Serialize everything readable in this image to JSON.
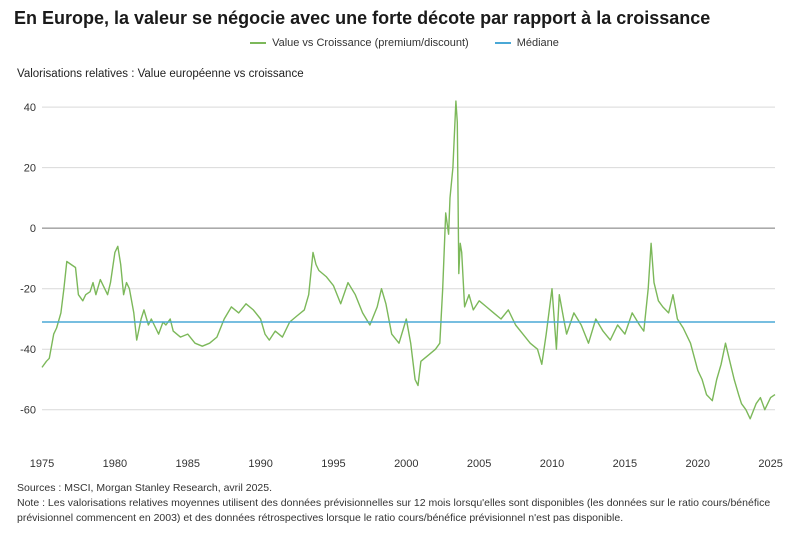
{
  "title": "En Europe, la valeur se négocie avec une forte décote par rapport à la croissance",
  "subtitle": "Valorisations relatives : Value européenne vs croissance",
  "legend": [
    {
      "label": "Value vs Croissance (premium/discount)",
      "color": "#7cb85a"
    },
    {
      "label": "Médiane",
      "color": "#4aa8d6"
    }
  ],
  "notes": {
    "source": "Sources : MSCI, Morgan Stanley Research, avril 2025.",
    "note": "Note : Les valorisations relatives moyennes utilisent des données prévisionnelles sur 12 mois lorsqu'elles sont disponibles (les données sur le ratio cours/bénéfice prévisionnel commencent en 2003) et des données rétrospectives lorsque le ratio cours/bénéfice prévisionnel n'est pas disponible."
  },
  "chart_data": {
    "type": "line",
    "xlim": [
      1975,
      2025.3
    ],
    "ylim": [
      -70,
      45
    ],
    "yticks": [
      40,
      20,
      0,
      -20,
      -40,
      -60
    ],
    "xticks": [
      1975,
      1980,
      1985,
      1990,
      1995,
      2000,
      2005,
      2010,
      2015,
      2020,
      2025
    ],
    "grid": true,
    "legend_position": "top-center",
    "series": [
      {
        "name": "Value vs Croissance (premium/discount)",
        "color": "#7cb85a",
        "points": [
          [
            1975.0,
            -46
          ],
          [
            1975.3,
            -44
          ],
          [
            1975.5,
            -43
          ],
          [
            1975.8,
            -35
          ],
          [
            1976.0,
            -33
          ],
          [
            1976.3,
            -28
          ],
          [
            1976.5,
            -20
          ],
          [
            1976.7,
            -11
          ],
          [
            1977.0,
            -12
          ],
          [
            1977.3,
            -13
          ],
          [
            1977.5,
            -22
          ],
          [
            1977.8,
            -24
          ],
          [
            1978.0,
            -22
          ],
          [
            1978.3,
            -21
          ],
          [
            1978.5,
            -18
          ],
          [
            1978.7,
            -22
          ],
          [
            1979.0,
            -17
          ],
          [
            1979.3,
            -20
          ],
          [
            1979.5,
            -22
          ],
          [
            1979.7,
            -18
          ],
          [
            1980.0,
            -8
          ],
          [
            1980.2,
            -6
          ],
          [
            1980.4,
            -12
          ],
          [
            1980.6,
            -22
          ],
          [
            1980.8,
            -18
          ],
          [
            1981.0,
            -20
          ],
          [
            1981.3,
            -28
          ],
          [
            1981.5,
            -37
          ],
          [
            1981.8,
            -30
          ],
          [
            1982.0,
            -27
          ],
          [
            1982.3,
            -32
          ],
          [
            1982.5,
            -30
          ],
          [
            1982.8,
            -33
          ],
          [
            1983.0,
            -35
          ],
          [
            1983.3,
            -31
          ],
          [
            1983.5,
            -32
          ],
          [
            1983.8,
            -30
          ],
          [
            1984.0,
            -34
          ],
          [
            1984.5,
            -36
          ],
          [
            1985.0,
            -35
          ],
          [
            1985.5,
            -38
          ],
          [
            1986.0,
            -39
          ],
          [
            1986.5,
            -38
          ],
          [
            1987.0,
            -36
          ],
          [
            1987.5,
            -30
          ],
          [
            1988.0,
            -26
          ],
          [
            1988.5,
            -28
          ],
          [
            1989.0,
            -25
          ],
          [
            1989.5,
            -27
          ],
          [
            1990.0,
            -30
          ],
          [
            1990.3,
            -35
          ],
          [
            1990.6,
            -37
          ],
          [
            1991.0,
            -34
          ],
          [
            1991.5,
            -36
          ],
          [
            1992.0,
            -31
          ],
          [
            1992.5,
            -29
          ],
          [
            1993.0,
            -27
          ],
          [
            1993.3,
            -22
          ],
          [
            1993.6,
            -8
          ],
          [
            1993.8,
            -12
          ],
          [
            1994.0,
            -14
          ],
          [
            1994.5,
            -16
          ],
          [
            1995.0,
            -19
          ],
          [
            1995.5,
            -25
          ],
          [
            1996.0,
            -18
          ],
          [
            1996.5,
            -22
          ],
          [
            1997.0,
            -28
          ],
          [
            1997.5,
            -32
          ],
          [
            1998.0,
            -26
          ],
          [
            1998.3,
            -20
          ],
          [
            1998.6,
            -25
          ],
          [
            1999.0,
            -35
          ],
          [
            1999.5,
            -38
          ],
          [
            2000.0,
            -30
          ],
          [
            2000.3,
            -38
          ],
          [
            2000.6,
            -50
          ],
          [
            2000.8,
            -52
          ],
          [
            2001.0,
            -44
          ],
          [
            2001.5,
            -42
          ],
          [
            2002.0,
            -40
          ],
          [
            2002.3,
            -38
          ],
          [
            2002.5,
            -20
          ],
          [
            2002.7,
            5
          ],
          [
            2002.9,
            -2
          ],
          [
            2003.0,
            10
          ],
          [
            2003.2,
            20
          ],
          [
            2003.4,
            42
          ],
          [
            2003.5,
            35
          ],
          [
            2003.6,
            -15
          ],
          [
            2003.7,
            -5
          ],
          [
            2003.8,
            -8
          ],
          [
            2004.0,
            -26
          ],
          [
            2004.3,
            -22
          ],
          [
            2004.6,
            -27
          ],
          [
            2005.0,
            -24
          ],
          [
            2005.5,
            -26
          ],
          [
            2006.0,
            -28
          ],
          [
            2006.5,
            -30
          ],
          [
            2007.0,
            -27
          ],
          [
            2007.5,
            -32
          ],
          [
            2008.0,
            -35
          ],
          [
            2008.5,
            -38
          ],
          [
            2009.0,
            -40
          ],
          [
            2009.3,
            -45
          ],
          [
            2009.6,
            -35
          ],
          [
            2010.0,
            -20
          ],
          [
            2010.3,
            -40
          ],
          [
            2010.5,
            -22
          ],
          [
            2010.8,
            -30
          ],
          [
            2011.0,
            -35
          ],
          [
            2011.5,
            -28
          ],
          [
            2012.0,
            -32
          ],
          [
            2012.5,
            -38
          ],
          [
            2013.0,
            -30
          ],
          [
            2013.5,
            -34
          ],
          [
            2014.0,
            -37
          ],
          [
            2014.5,
            -32
          ],
          [
            2015.0,
            -35
          ],
          [
            2015.5,
            -28
          ],
          [
            2016.0,
            -32
          ],
          [
            2016.3,
            -34
          ],
          [
            2016.6,
            -20
          ],
          [
            2016.8,
            -5
          ],
          [
            2017.0,
            -18
          ],
          [
            2017.3,
            -24
          ],
          [
            2017.6,
            -26
          ],
          [
            2018.0,
            -28
          ],
          [
            2018.3,
            -22
          ],
          [
            2018.6,
            -30
          ],
          [
            2019.0,
            -33
          ],
          [
            2019.5,
            -38
          ],
          [
            2020.0,
            -47
          ],
          [
            2020.3,
            -50
          ],
          [
            2020.6,
            -55
          ],
          [
            2021.0,
            -57
          ],
          [
            2021.3,
            -50
          ],
          [
            2021.6,
            -45
          ],
          [
            2021.9,
            -38
          ],
          [
            2022.2,
            -44
          ],
          [
            2022.5,
            -50
          ],
          [
            2022.8,
            -55
          ],
          [
            2023.0,
            -58
          ],
          [
            2023.3,
            -60
          ],
          [
            2023.6,
            -63
          ],
          [
            2024.0,
            -58
          ],
          [
            2024.3,
            -56
          ],
          [
            2024.6,
            -60
          ],
          [
            2025.0,
            -56
          ],
          [
            2025.3,
            -55
          ]
        ]
      },
      {
        "name": "Médiane",
        "color": "#4aa8d6",
        "points": [
          [
            1975.0,
            -31
          ],
          [
            2025.3,
            -31
          ]
        ]
      }
    ]
  }
}
